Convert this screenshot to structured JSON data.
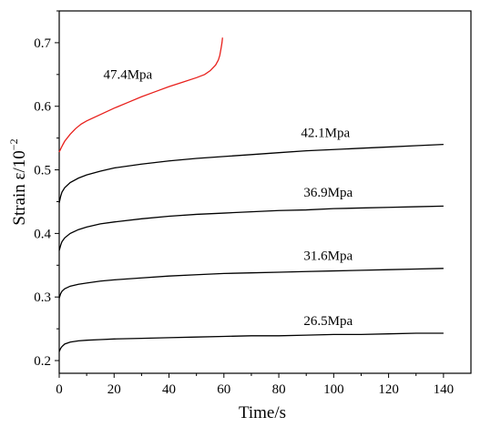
{
  "chart_data": {
    "type": "line",
    "title": "",
    "xlabel": "Time/s",
    "ylabel": "Strain ε/10",
    "ylabel_exponent": "−2",
    "xlim": [
      0,
      150
    ],
    "ylim": [
      0.18,
      0.75
    ],
    "x_ticks": [
      0,
      20,
      40,
      60,
      80,
      100,
      120,
      140
    ],
    "y_ticks": [
      0.2,
      0.3,
      0.4,
      0.5,
      0.6,
      0.7
    ],
    "grid": false,
    "legend": "none",
    "series": [
      {
        "name": "47.4Mpa",
        "color": "#e8201c",
        "x": [
          0,
          1,
          2,
          4,
          6,
          8,
          10,
          15,
          20,
          25,
          30,
          35,
          40,
          45,
          50,
          53,
          55,
          57,
          58,
          58.5,
          59,
          59.3,
          59.5
        ],
        "y": [
          0.528,
          0.537,
          0.545,
          0.556,
          0.565,
          0.572,
          0.577,
          0.587,
          0.597,
          0.606,
          0.615,
          0.623,
          0.631,
          0.638,
          0.645,
          0.65,
          0.656,
          0.665,
          0.673,
          0.68,
          0.692,
          0.7,
          0.708
        ]
      },
      {
        "name": "42.1Mpa",
        "color": "#000000",
        "x": [
          0,
          0.5,
          1,
          2,
          4,
          7,
          10,
          15,
          20,
          30,
          40,
          50,
          60,
          70,
          80,
          90,
          100,
          110,
          120,
          130,
          140
        ],
        "y": [
          0.448,
          0.458,
          0.465,
          0.472,
          0.48,
          0.487,
          0.492,
          0.498,
          0.503,
          0.509,
          0.514,
          0.518,
          0.521,
          0.524,
          0.527,
          0.53,
          0.532,
          0.534,
          0.536,
          0.538,
          0.54
        ]
      },
      {
        "name": "36.9Mpa",
        "color": "#000000",
        "x": [
          0,
          0.5,
          1,
          2,
          4,
          7,
          10,
          15,
          20,
          30,
          40,
          50,
          60,
          70,
          80,
          90,
          100,
          110,
          120,
          130,
          140
        ],
        "y": [
          0.373,
          0.381,
          0.387,
          0.393,
          0.4,
          0.406,
          0.41,
          0.415,
          0.418,
          0.423,
          0.427,
          0.43,
          0.432,
          0.434,
          0.436,
          0.437,
          0.439,
          0.44,
          0.441,
          0.442,
          0.443
        ]
      },
      {
        "name": "31.6Mpa",
        "color": "#000000",
        "x": [
          0,
          0.5,
          1,
          2,
          4,
          7,
          10,
          15,
          20,
          30,
          40,
          50,
          60,
          70,
          80,
          90,
          100,
          110,
          120,
          130,
          140
        ],
        "y": [
          0.298,
          0.305,
          0.309,
          0.313,
          0.317,
          0.32,
          0.322,
          0.325,
          0.327,
          0.33,
          0.333,
          0.335,
          0.337,
          0.338,
          0.339,
          0.34,
          0.341,
          0.342,
          0.343,
          0.344,
          0.345
        ]
      },
      {
        "name": "26.5Mpa",
        "color": "#000000",
        "x": [
          0,
          0.5,
          1,
          2,
          4,
          7,
          10,
          15,
          20,
          30,
          40,
          50,
          60,
          70,
          80,
          90,
          100,
          110,
          120,
          130,
          140
        ],
        "y": [
          0.214,
          0.219,
          0.222,
          0.226,
          0.229,
          0.231,
          0.232,
          0.233,
          0.234,
          0.235,
          0.236,
          0.237,
          0.238,
          0.239,
          0.239,
          0.24,
          0.241,
          0.241,
          0.242,
          0.243,
          0.243
        ]
      }
    ]
  }
}
